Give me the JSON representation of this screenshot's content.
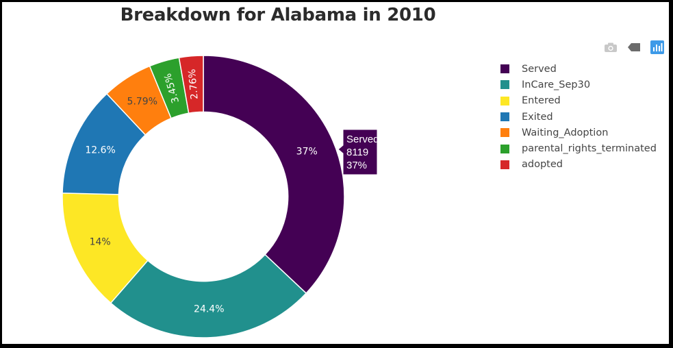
{
  "chart_data": {
    "type": "pie",
    "hole": 0.6,
    "title": "Breakdown for Alabama in 2010",
    "categories": [
      "Served",
      "InCare_Sep30",
      "Entered",
      "Exited",
      "Waiting_Adoption",
      "parental_rights_terminated",
      "adopted"
    ],
    "values": [
      37,
      24.4,
      14,
      12.6,
      5.79,
      3.45,
      2.76
    ],
    "labels": [
      "37%",
      "24.4%",
      "14%",
      "12.6%",
      "5.79%",
      "3.45%",
      "2.76%"
    ],
    "colors": [
      "#440154",
      "#21908d",
      "#fde725",
      "#1f77b4",
      "#ff7f0e",
      "#2ca02c",
      "#d62728"
    ],
    "label_colors": [
      "#ffffff",
      "#ffffff",
      "#444444",
      "#ffffff",
      "#444444",
      "#ffffff",
      "#ffffff"
    ],
    "legend_position": "top-right",
    "hover": {
      "name": "Served",
      "value": "8119",
      "percent": "37%"
    }
  },
  "modebar": [
    "camera-icon",
    "pan-icon",
    "plotly-logo-icon"
  ]
}
